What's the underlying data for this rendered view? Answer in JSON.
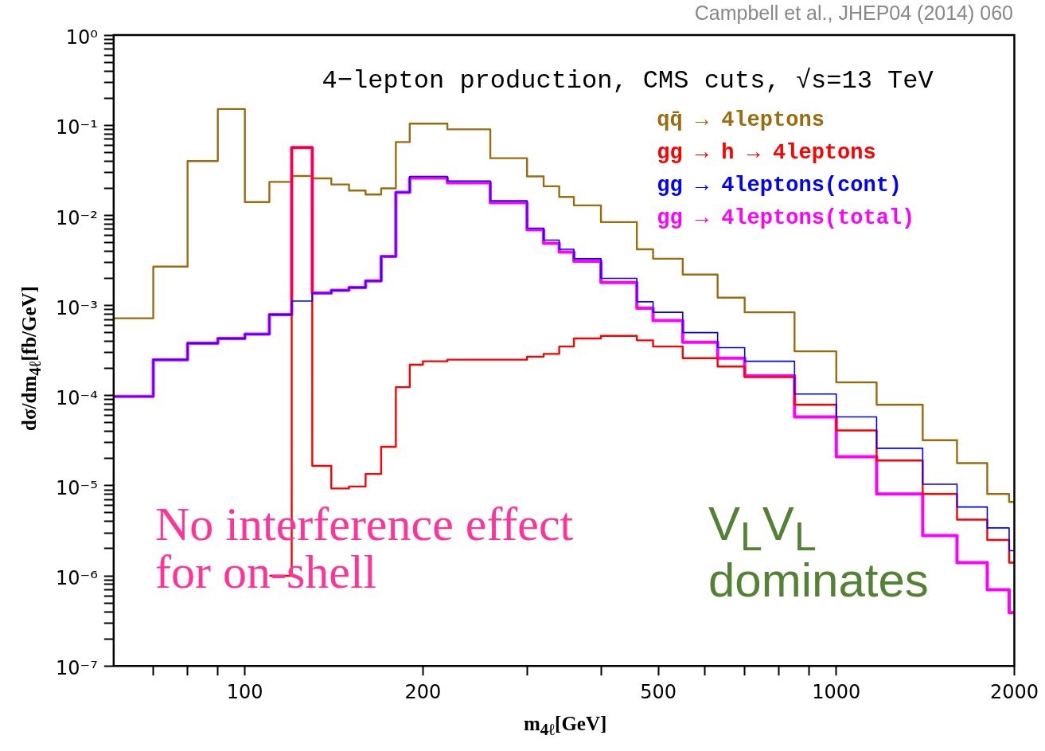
{
  "chart_data": {
    "type": "step",
    "title": "4−lepton production, CMS cuts, √s=13 TeV",
    "xlabel": "m$_{4ℓ}$[GeV]",
    "ylabel": "dσ/dm$_{4ℓ}$[fb/GeV]",
    "annotations": [
      "Campbell et al., JHEP04 (2014) 060",
      "No interference effect for on-shell",
      "V$_{L}$V$_{L}$ dominates"
    ],
    "log": "xy",
    "grid": false,
    "legend": "top right",
    "marker": "none",
    "line_style": "solid",
    "xlim": [
      60,
      2000
    ],
    "ylim": [
      1e-07,
      1
    ],
    "xticks": [
      {
        "value": 70,
        "label": null
      },
      {
        "value": 80,
        "label": null
      },
      {
        "value": 90,
        "label": null
      },
      100,
      200,
      {
        "value": 300,
        "label": null
      },
      {
        "value": 400,
        "label": null
      },
      500,
      {
        "value": 600,
        "label": null
      },
      {
        "value": 700,
        "label": null
      },
      {
        "value": 800,
        "label": null
      },
      {
        "value": 900,
        "label": null
      },
      1000,
      2000
    ],
    "yticks": [
      {
        "value": 1e-07,
        "label": "10⁻⁷"
      },
      {
        "value": 2e-07,
        "label": null
      },
      {
        "value": 3e-07,
        "label": null
      },
      {
        "value": 4e-07,
        "label": null
      },
      {
        "value": 5e-07,
        "label": null
      },
      {
        "value": 6e-07,
        "label": null
      },
      {
        "value": 7e-07,
        "label": null
      },
      {
        "value": 8e-07,
        "label": null
      },
      {
        "value": 9e-07,
        "label": null
      },
      {
        "value": 1e-06,
        "label": "10⁻⁶"
      },
      {
        "value": 2e-06,
        "label": null
      },
      {
        "value": 3e-06,
        "label": null
      },
      {
        "value": 4e-06,
        "label": null
      },
      {
        "value": 5e-06,
        "label": null
      },
      {
        "value": 6e-06,
        "label": null
      },
      {
        "value": 7e-06,
        "label": null
      },
      {
        "value": 8e-06,
        "label": null
      },
      {
        "value": 9e-06,
        "label": null
      },
      {
        "value": 1e-05,
        "label": "10⁻⁵"
      },
      {
        "value": 2e-05,
        "label": null
      },
      {
        "value": 3e-05,
        "label": null
      },
      {
        "value": 4e-05,
        "label": null
      },
      {
        "value": 5e-05,
        "label": null
      },
      {
        "value": 6e-05,
        "label": null
      },
      {
        "value": 7e-05,
        "label": null
      },
      {
        "value": 8e-05,
        "label": null
      },
      {
        "value": 9e-05,
        "label": null
      },
      {
        "value": 0.0001,
        "label": "10⁻⁴"
      },
      {
        "value": 0.0002,
        "label": null
      },
      {
        "value": 0.0003,
        "label": null
      },
      {
        "value": 0.0004,
        "label": null
      },
      {
        "value": 0.0005,
        "label": null
      },
      {
        "value": 0.0006,
        "label": null
      },
      {
        "value": 0.0007,
        "label": null
      },
      {
        "value": 0.0008,
        "label": null
      },
      {
        "value": 0.0009,
        "label": null
      },
      {
        "value": 0.001,
        "label": "10⁻³"
      },
      {
        "value": 0.002,
        "label": null
      },
      {
        "value": 0.003,
        "label": null
      },
      {
        "value": 0.004,
        "label": null
      },
      {
        "value": 0.005,
        "label": null
      },
      {
        "value": 0.006,
        "label": null
      },
      {
        "value": 0.007,
        "label": null
      },
      {
        "value": 0.008,
        "label": null
      },
      {
        "value": 0.009,
        "label": null
      },
      {
        "value": 0.01,
        "label": "10⁻²"
      },
      {
        "value": 0.02,
        "label": null
      },
      {
        "value": 0.03,
        "label": null
      },
      {
        "value": 0.04,
        "label": null
      },
      {
        "value": 0.05,
        "label": null
      },
      {
        "value": 0.06,
        "label": null
      },
      {
        "value": 0.07,
        "label": null
      },
      {
        "value": 0.08,
        "label": null
      },
      {
        "value": 0.09,
        "label": null
      },
      {
        "value": 0.1,
        "label": "10⁻¹"
      },
      {
        "value": 0.2,
        "label": null
      },
      {
        "value": 0.3,
        "label": null
      },
      {
        "value": 0.4,
        "label": null
      },
      {
        "value": 0.5,
        "label": null
      },
      {
        "value": 0.6,
        "label": null
      },
      {
        "value": 0.7,
        "label": null
      },
      {
        "value": 0.8,
        "label": null
      },
      {
        "value": 0.9,
        "label": null
      },
      {
        "value": 1,
        "label": "10⁰"
      }
    ],
    "x": [
      60,
      70,
      80,
      90,
      100,
      110,
      120,
      130,
      140,
      150,
      160,
      170,
      180,
      190,
      200,
      220,
      260,
      300,
      320,
      340,
      360,
      400,
      460,
      490,
      550,
      630,
      700,
      850,
      1000,
      1170,
      1400,
      1600,
      1800,
      1960,
      2000
    ],
    "series": [
      {
        "name": "qq̄ → 4leptons",
        "color": "#9c6b0c",
        "values": [
          0.00072,
          0.0027,
          0.04,
          0.151,
          0.014,
          0.0235,
          0.0273,
          0.0257,
          0.022,
          0.0188,
          0.017,
          0.0199,
          0.065,
          0.104,
          0.104,
          0.09,
          0.043,
          0.027,
          0.021,
          0.016,
          0.0129,
          0.0084,
          0.0042,
          0.0033,
          0.0022,
          0.00122,
          0.00084,
          0.00031,
          0.00014,
          7.9e-05,
          3.2e-05,
          1.78e-05,
          8.1e-06,
          6.6e-06,
          6.6e-06
        ]
      },
      {
        "name": "gg → h → 4leptons",
        "color": "#ff0000",
        "values": [
          null,
          null,
          null,
          null,
          null,
          1e-06,
          0.0565,
          1.66e-05,
          9.3e-06,
          9.8e-06,
          1.35e-05,
          2.7e-05,
          0.000124,
          0.00022,
          0.00024,
          0.00025,
          0.00025,
          0.00027,
          0.00029,
          0.00035,
          0.00043,
          0.00046,
          0.00041,
          0.00035,
          0.00026,
          0.00021,
          0.00016,
          7.9e-05,
          4.1e-05,
          1.9e-05,
          8.1e-06,
          4.2e-06,
          2.5e-06,
          1.4e-06,
          1.4e-06
        ]
      },
      {
        "name": "gg → 4leptons(cont)",
        "color": "#0000ff",
        "values": [
          9.8e-05,
          0.00025,
          0.00038,
          0.00043,
          0.00048,
          0.00079,
          0.00112,
          0.00137,
          0.00147,
          0.00158,
          0.00187,
          0.0035,
          0.018,
          0.027,
          0.027,
          0.024,
          0.0145,
          0.0072,
          0.0053,
          0.0042,
          0.0033,
          0.002,
          0.0011,
          0.00084,
          0.0005,
          0.00034,
          0.00024,
          0.000104,
          5.8e-05,
          2.6e-05,
          1.04e-05,
          5.8e-06,
          3.4e-06,
          1.9e-06,
          1.9e-06
        ]
      },
      {
        "name": "gg → 4leptons(total)",
        "color": "#ff00ff",
        "values": [
          9.8e-05,
          0.00025,
          0.00038,
          0.00043,
          0.00048,
          0.00079,
          0.0565,
          0.00137,
          0.00147,
          0.00158,
          0.00187,
          0.0035,
          0.018,
          0.026,
          0.026,
          0.023,
          0.0138,
          0.0069,
          0.0049,
          0.0039,
          0.0031,
          0.0018,
          0.00093,
          0.00068,
          0.00039,
          0.00026,
          0.000165,
          5.8e-05,
          2.1e-05,
          8.1e-06,
          2.8e-06,
          1.4e-06,
          7e-07,
          3.9e-07,
          3.9e-07
        ]
      }
    ]
  }
}
